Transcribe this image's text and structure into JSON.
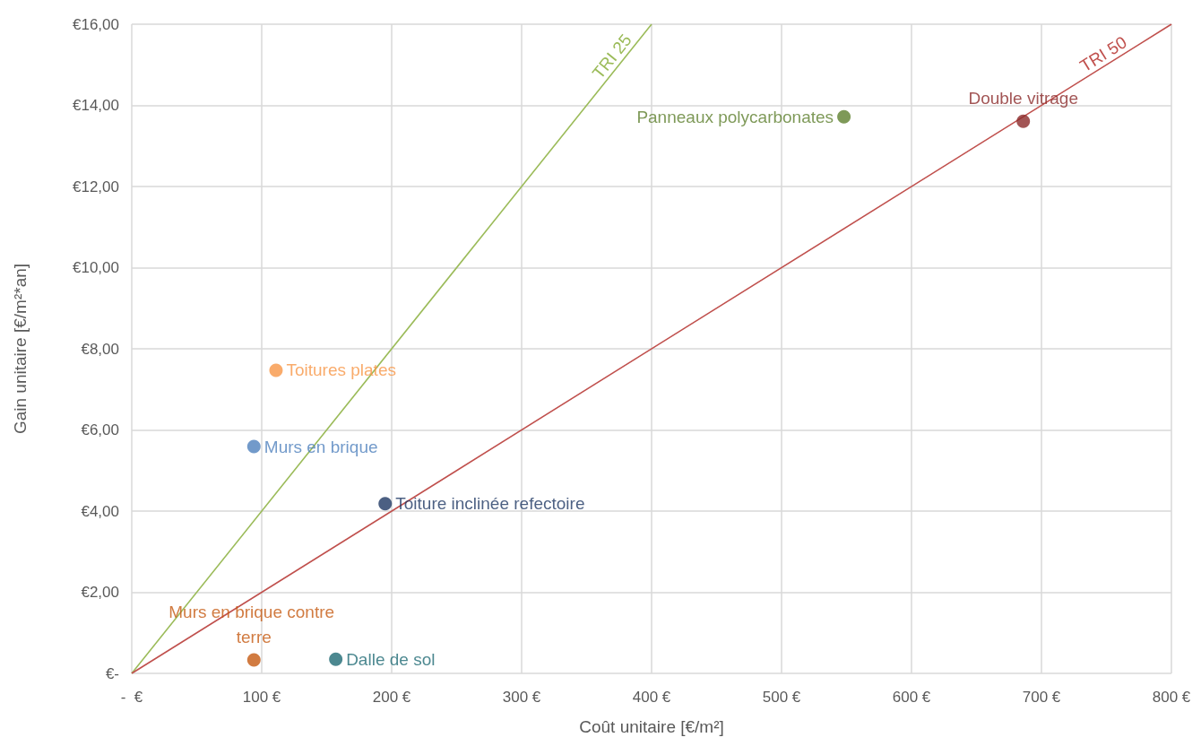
{
  "chart_data": {
    "type": "scatter",
    "xlabel": "Coût unitaire [€/m²]",
    "ylabel": "Gain unitaire [€/m²*an]",
    "xlim": [
      0,
      800
    ],
    "xticks": [
      {
        "value": 0,
        "label": "-  €"
      },
      {
        "value": 100,
        "label": "100 €"
      },
      {
        "value": 200,
        "label": "200 €"
      },
      {
        "value": 300,
        "label": "300 €"
      },
      {
        "value": 400,
        "label": "400 €"
      },
      {
        "value": 500,
        "label": "500 €"
      },
      {
        "value": 600,
        "label": "600 €"
      },
      {
        "value": 700,
        "label": "700 €"
      },
      {
        "value": 800,
        "label": "800 €"
      }
    ],
    "ylim": [
      0,
      16
    ],
    "yticks": [
      {
        "value": 0,
        "label": "€-"
      },
      {
        "value": 2,
        "label": "€2,00"
      },
      {
        "value": 4,
        "label": "€4,00"
      },
      {
        "value": 6,
        "label": "€6,00"
      },
      {
        "value": 8,
        "label": "€8,00"
      },
      {
        "value": 10,
        "label": "€10,00"
      },
      {
        "value": 12,
        "label": "€12,00"
      },
      {
        "value": 14,
        "label": "€14,00"
      },
      {
        "value": 16,
        "label": "€16,00"
      }
    ],
    "grid": true,
    "legend": false,
    "marker": "circle",
    "series": [
      {
        "name": "Toitures plates",
        "color": "#f79646",
        "x": [
          111
        ],
        "values": [
          7.47
        ]
      },
      {
        "name": "Murs en brique",
        "color": "#4f81bd",
        "x": [
          94
        ],
        "values": [
          5.59
        ]
      },
      {
        "name": "Toiture inclinée refectoire",
        "color": "#1f3864",
        "x": [
          195
        ],
        "values": [
          4.18
        ]
      },
      {
        "name": "Murs en brique contre terre",
        "color": "#c55a11",
        "x": [
          94
        ],
        "values": [
          0.33
        ]
      },
      {
        "name": "Dalle de sol",
        "color": "#1f6a74",
        "x": [
          157
        ],
        "values": [
          0.35
        ]
      },
      {
        "name": "Panneaux polycarbonates",
        "color": "#5e7f2e",
        "x": [
          548
        ],
        "values": [
          13.72
        ]
      },
      {
        "name": "Double vitrage",
        "color": "#8b2a2a",
        "x": [
          686
        ],
        "values": [
          13.61
        ]
      },
      {
        "name": "TRI 25",
        "type": "line",
        "marker": "none",
        "color": "#9bbb59",
        "x": [
          0,
          400
        ],
        "values": [
          0,
          16
        ]
      },
      {
        "name": "TRI 50",
        "type": "line",
        "marker": "none",
        "color": "#c0504d",
        "x": [
          0,
          800
        ],
        "values": [
          0,
          16
        ]
      }
    ]
  }
}
